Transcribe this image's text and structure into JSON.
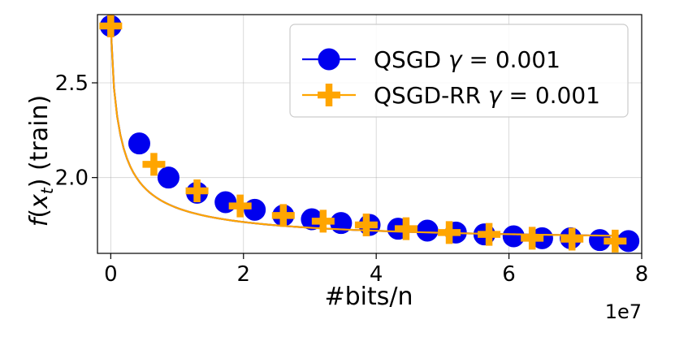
{
  "chart_data": {
    "type": "line",
    "xlabel": "#bits/n",
    "ylabel": "f(x_t) (train)",
    "x_multiplier_label": "1e7",
    "xlim": [
      -0.2,
      8.0
    ],
    "ylim": [
      1.6,
      2.86
    ],
    "xticks": [
      0,
      2,
      4,
      6,
      8
    ],
    "xtick_labels": [
      "0",
      "2",
      "4",
      "6",
      "8"
    ],
    "yticks": [
      2.0,
      2.5
    ],
    "ytick_labels": [
      "2.0",
      "2.5"
    ],
    "grid": true,
    "legend_position": "top-right",
    "series": [
      {
        "name": "QSGD γ = 0.001",
        "legend_prefix": "QSGD ",
        "legend_gamma": "γ",
        "legend_suffix": " = 0.001",
        "color": "#0000ee",
        "marker": "circle",
        "x": [
          0.0,
          0.43,
          0.87,
          1.3,
          1.73,
          2.17,
          2.6,
          3.03,
          3.47,
          3.9,
          4.33,
          4.77,
          5.2,
          5.63,
          6.07,
          6.5,
          6.93,
          7.37,
          7.8
        ],
        "y": [
          2.8,
          2.18,
          2.0,
          1.92,
          1.87,
          1.83,
          1.8,
          1.78,
          1.76,
          1.75,
          1.73,
          1.72,
          1.71,
          1.7,
          1.69,
          1.68,
          1.68,
          1.67,
          1.665
        ]
      },
      {
        "name": "QSGD-RR γ = 0.001",
        "legend_prefix": "QSGD-RR ",
        "legend_gamma": "γ",
        "legend_suffix": " = 0.001",
        "color": "#ffa500",
        "marker": "plus",
        "x": [
          0.0,
          0.65,
          1.3,
          1.95,
          2.6,
          3.2,
          3.85,
          4.45,
          5.1,
          5.7,
          6.35,
          6.95,
          7.6
        ],
        "y": [
          2.8,
          2.07,
          1.93,
          1.85,
          1.8,
          1.77,
          1.75,
          1.73,
          1.71,
          1.7,
          1.68,
          1.675,
          1.665
        ]
      }
    ]
  }
}
